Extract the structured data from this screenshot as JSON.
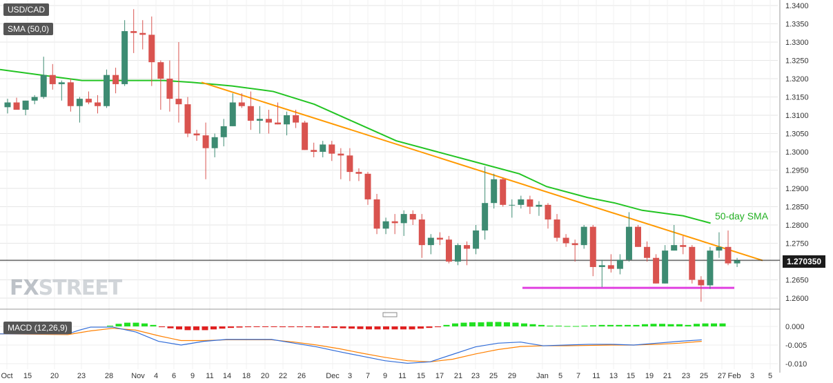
{
  "symbol_label": "USD/CAD",
  "sma_label": "SMA (50,0)",
  "macd_label": "MACD (12,26,9)",
  "current_price": "1.270350",
  "annotation": "50-day SMA",
  "logo": {
    "part1": "FX",
    "part2": "STREET"
  },
  "colors": {
    "bull": "#3d8b72",
    "bear": "#d9534f",
    "sma": "#22c422",
    "trendline": "#ff9900",
    "support": "#e040e0",
    "macd_line": "#2f6bd8",
    "signal_line": "#ff8000",
    "hist_pos": "#22e022",
    "hist_neg": "#e02020"
  },
  "chart_data": {
    "type": "candlestick",
    "title": "USD/CAD",
    "y_axis": {
      "min": 1.26,
      "max": 1.34,
      "ticks": [
        "1.2600",
        "1.2650",
        "1.2700",
        "1.2750",
        "1.2800",
        "1.2850",
        "1.2900",
        "1.2950",
        "1.3000",
        "1.3050",
        "1.3100",
        "1.3150",
        "1.3200",
        "1.3250",
        "1.3300",
        "1.3350",
        "1.3400"
      ]
    },
    "x_axis_labels": [
      "Oct",
      "15",
      "20",
      "23",
      "28",
      "Nov",
      "4",
      "6",
      "9",
      "11",
      "14",
      "18",
      "20",
      "22",
      "26",
      "Dec",
      "3",
      "7",
      "9",
      "11",
      "15",
      "17",
      "21",
      "23",
      "25",
      "29",
      "Jan",
      "5",
      "7",
      "11",
      "13",
      "15",
      "19",
      "21",
      "23",
      "25",
      "27",
      "Feb",
      "3",
      "5"
    ],
    "candles": [
      [
        1.3122,
        1.3145,
        1.3105,
        1.3135
      ],
      [
        1.3135,
        1.3148,
        1.312,
        1.3115
      ],
      [
        1.3115,
        1.314,
        1.31,
        1.314
      ],
      [
        1.314,
        1.3155,
        1.313,
        1.315
      ],
      [
        1.315,
        1.326,
        1.3145,
        1.321
      ],
      [
        1.321,
        1.324,
        1.317,
        1.3185
      ],
      [
        1.3185,
        1.3195,
        1.314,
        1.319
      ],
      [
        1.319,
        1.32,
        1.311,
        1.3125
      ],
      [
        1.3125,
        1.315,
        1.308,
        1.3145
      ],
      [
        1.3145,
        1.3165,
        1.313,
        1.3135
      ],
      [
        1.3135,
        1.3155,
        1.3105,
        1.3125
      ],
      [
        1.3125,
        1.3225,
        1.312,
        1.321
      ],
      [
        1.321,
        1.323,
        1.316,
        1.3185
      ],
      [
        1.3185,
        1.336,
        1.318,
        1.333
      ],
      [
        1.333,
        1.339,
        1.327,
        1.3325
      ],
      [
        1.3325,
        1.336,
        1.328,
        1.332
      ],
      [
        1.332,
        1.337,
        1.318,
        1.3245
      ],
      [
        1.3245,
        1.325,
        1.3115,
        1.32
      ],
      [
        1.32,
        1.325,
        1.311,
        1.3145
      ],
      [
        1.3145,
        1.33,
        1.308,
        1.313
      ],
      [
        1.313,
        1.315,
        1.304,
        1.305
      ],
      [
        1.305,
        1.306,
        1.303,
        1.3045
      ],
      [
        1.3045,
        1.308,
        1.2925,
        1.301
      ],
      [
        1.301,
        1.305,
        1.2985,
        1.304
      ],
      [
        1.304,
        1.309,
        1.3015,
        1.307
      ],
      [
        1.307,
        1.316,
        1.307,
        1.3135
      ],
      [
        1.3135,
        1.316,
        1.312,
        1.3125
      ],
      [
        1.3125,
        1.3165,
        1.306,
        1.3085
      ],
      [
        1.3085,
        1.3125,
        1.305,
        1.309
      ],
      [
        1.309,
        1.3115,
        1.305,
        1.308
      ],
      [
        1.308,
        1.3135,
        1.3075,
        1.3075
      ],
      [
        1.3075,
        1.311,
        1.3045,
        1.31
      ],
      [
        1.31,
        1.3115,
        1.3065,
        1.308
      ],
      [
        1.308,
        1.3085,
        1.3005,
        1.3005
      ],
      [
        1.3005,
        1.3025,
        1.2985,
        1.3
      ],
      [
        1.3,
        1.303,
        1.2985,
        1.302
      ],
      [
        1.302,
        1.303,
        1.2975,
        1.2995
      ],
      [
        1.2995,
        1.301,
        1.2925,
        1.299
      ],
      [
        1.299,
        1.301,
        1.292,
        1.2945
      ],
      [
        1.2945,
        1.2955,
        1.292,
        1.294
      ],
      [
        1.294,
        1.2945,
        1.2855,
        1.287
      ],
      [
        1.287,
        1.2885,
        1.2775,
        1.279
      ],
      [
        1.279,
        1.282,
        1.2775,
        1.281
      ],
      [
        1.281,
        1.283,
        1.2775,
        1.2805
      ],
      [
        1.2805,
        1.284,
        1.277,
        1.283
      ],
      [
        1.283,
        1.284,
        1.28,
        1.2815
      ],
      [
        1.2815,
        1.283,
        1.271,
        1.2745
      ],
      [
        1.2745,
        1.2775,
        1.272,
        1.2765
      ],
      [
        1.2765,
        1.278,
        1.2745,
        1.276
      ],
      [
        1.276,
        1.277,
        1.2695,
        1.27
      ],
      [
        1.27,
        1.275,
        1.269,
        1.2745
      ],
      [
        1.2745,
        1.2755,
        1.269,
        1.2735
      ],
      [
        1.2735,
        1.28,
        1.272,
        1.2785
      ],
      [
        1.2785,
        1.296,
        1.276,
        1.286
      ],
      [
        1.286,
        1.294,
        1.2845,
        1.2925
      ],
      [
        1.2925,
        1.293,
        1.285,
        1.2855
      ],
      [
        1.2855,
        1.287,
        1.282,
        1.2855
      ],
      [
        1.2855,
        1.288,
        1.2845,
        1.287
      ],
      [
        1.287,
        1.288,
        1.283,
        1.285
      ],
      [
        1.285,
        1.2865,
        1.2825,
        1.2855
      ],
      [
        1.2855,
        1.286,
        1.279,
        1.2815
      ],
      [
        1.2815,
        1.283,
        1.2755,
        1.2765
      ],
      [
        1.2765,
        1.2775,
        1.274,
        1.275
      ],
      [
        1.275,
        1.276,
        1.27,
        1.2745
      ],
      [
        1.2745,
        1.28,
        1.2735,
        1.2795
      ],
      [
        1.2795,
        1.28,
        1.266,
        1.2685
      ],
      [
        1.2685,
        1.2705,
        1.263,
        1.269
      ],
      [
        1.269,
        1.272,
        1.267,
        1.268
      ],
      [
        1.268,
        1.272,
        1.2665,
        1.2705
      ],
      [
        1.2705,
        1.2835,
        1.27,
        1.2795
      ],
      [
        1.2795,
        1.28,
        1.274,
        1.274
      ],
      [
        1.274,
        1.2755,
        1.27,
        1.271
      ],
      [
        1.271,
        1.272,
        1.264,
        1.264
      ],
      [
        1.264,
        1.2745,
        1.264,
        1.273
      ],
      [
        1.273,
        1.28,
        1.273,
        1.2745
      ],
      [
        1.2745,
        1.277,
        1.272,
        1.274
      ],
      [
        1.274,
        1.2745,
        1.264,
        1.265
      ],
      [
        1.265,
        1.266,
        1.259,
        1.2635
      ],
      [
        1.2635,
        1.274,
        1.2625,
        1.273
      ],
      [
        1.273,
        1.278,
        1.271,
        1.274
      ],
      [
        1.274,
        1.2785,
        1.269,
        1.2695
      ],
      [
        1.2695,
        1.271,
        1.2685,
        1.2703
      ]
    ],
    "sma50": [
      [
        0,
        1.3225
      ],
      [
        6,
        1.321
      ],
      [
        12,
        1.3195
      ],
      [
        18,
        1.3195
      ],
      [
        24,
        1.3195
      ],
      [
        28,
        1.319
      ],
      [
        34,
        1.318
      ],
      [
        40,
        1.3165
      ],
      [
        46,
        1.313
      ],
      [
        52,
        1.308
      ],
      [
        58,
        1.303
      ],
      [
        64,
        1.3
      ],
      [
        70,
        1.297
      ],
      [
        76,
        1.294
      ],
      [
        80,
        1.2905
      ],
      [
        86,
        1.2875
      ],
      [
        90,
        1.286
      ],
      [
        94,
        1.284
      ],
      [
        98,
        1.283
      ],
      [
        100,
        1.2825
      ],
      [
        104,
        1.2805
      ]
    ],
    "trendline": {
      "from": [
        16,
        1.319
      ],
      "to": [
        106,
        1.2703
      ]
    },
    "support": {
      "from": [
        60,
        1.2628
      ],
      "to": [
        106,
        1.2628
      ]
    },
    "macd": {
      "y_axis": {
        "min": -0.01,
        "max": 0.002,
        "ticks": [
          "0.000",
          "-0.005",
          "-0.010"
        ]
      },
      "histogram": [
        0,
        0,
        0,
        0,
        0,
        0,
        0,
        0,
        0,
        0,
        0,
        0,
        0.0002,
        0.0007,
        0.001,
        0.001,
        0.0008,
        0.0004,
        -0.0002,
        -0.0005,
        -0.0008,
        -0.001,
        -0.001,
        -0.001,
        -0.0008,
        -0.0006,
        -0.0004,
        -0.0003,
        -0.0002,
        -0.0001,
        -0.0001,
        -0.0001,
        -0.0002,
        -0.0002,
        -0.0002,
        -0.0002,
        -0.0003,
        -0.0003,
        -0.0004,
        -0.0005,
        -0.0006,
        -0.0007,
        -0.0008,
        -0.0008,
        -0.0008,
        -0.0008,
        -0.0008,
        -0.0008,
        -0.0006,
        -0.0004,
        -0.0002,
        0.0004,
        0.0008,
        0.001,
        0.0011,
        0.0011,
        0.0012,
        0.0012,
        0.0011,
        0.001,
        0.0008,
        0.0006,
        0.0004,
        0.0002,
        0.0002,
        0.0001,
        0.0001,
        0.0002,
        0.0003,
        0.0004,
        0.0004,
        0.0004,
        0.0004,
        0.0004,
        0.0006,
        0.0007,
        0.0007,
        0.0006,
        0.0006,
        0.0004,
        0.0007,
        0.0008,
        0.0008,
        0.0008
      ],
      "macd_line": [
        [
          0,
          -0.002
        ],
        [
          12,
          -0.002
        ],
        [
          14,
          -0.001
        ],
        [
          16,
          -0.0002
        ],
        [
          20,
          -0.0002
        ],
        [
          24,
          -0.0015
        ],
        [
          28,
          -0.004
        ],
        [
          32,
          -0.005
        ],
        [
          36,
          -0.004
        ],
        [
          40,
          -0.0035
        ],
        [
          48,
          -0.0035
        ],
        [
          52,
          -0.0045
        ],
        [
          56,
          -0.0055
        ],
        [
          60,
          -0.0068
        ],
        [
          64,
          -0.008
        ],
        [
          68,
          -0.0092
        ],
        [
          72,
          -0.0099
        ],
        [
          76,
          -0.0095
        ],
        [
          80,
          -0.0075
        ],
        [
          84,
          -0.0055
        ],
        [
          88,
          -0.0045
        ],
        [
          92,
          -0.0042
        ],
        [
          96,
          -0.0052
        ],
        [
          100,
          -0.005
        ],
        [
          104,
          -0.0048
        ],
        [
          108,
          -0.0048
        ],
        [
          112,
          -0.005
        ],
        [
          116,
          -0.0045
        ],
        [
          120,
          -0.004
        ],
        [
          124,
          -0.0036
        ]
      ],
      "signal_line": [
        [
          0,
          -0.002
        ],
        [
          12,
          -0.0022
        ],
        [
          16,
          -0.0012
        ],
        [
          20,
          -0.0005
        ],
        [
          24,
          -0.001
        ],
        [
          28,
          -0.0025
        ],
        [
          32,
          -0.0038
        ],
        [
          36,
          -0.0038
        ],
        [
          40,
          -0.0036
        ],
        [
          48,
          -0.0036
        ],
        [
          52,
          -0.0042
        ],
        [
          56,
          -0.005
        ],
        [
          60,
          -0.006
        ],
        [
          64,
          -0.0072
        ],
        [
          68,
          -0.0083
        ],
        [
          72,
          -0.0092
        ],
        [
          76,
          -0.0095
        ],
        [
          80,
          -0.0088
        ],
        [
          84,
          -0.0074
        ],
        [
          88,
          -0.0062
        ],
        [
          92,
          -0.0054
        ],
        [
          96,
          -0.0052
        ],
        [
          100,
          -0.0052
        ],
        [
          104,
          -0.0051
        ],
        [
          108,
          -0.005
        ],
        [
          112,
          -0.005
        ],
        [
          116,
          -0.0048
        ],
        [
          120,
          -0.0045
        ],
        [
          124,
          -0.004
        ]
      ]
    }
  }
}
